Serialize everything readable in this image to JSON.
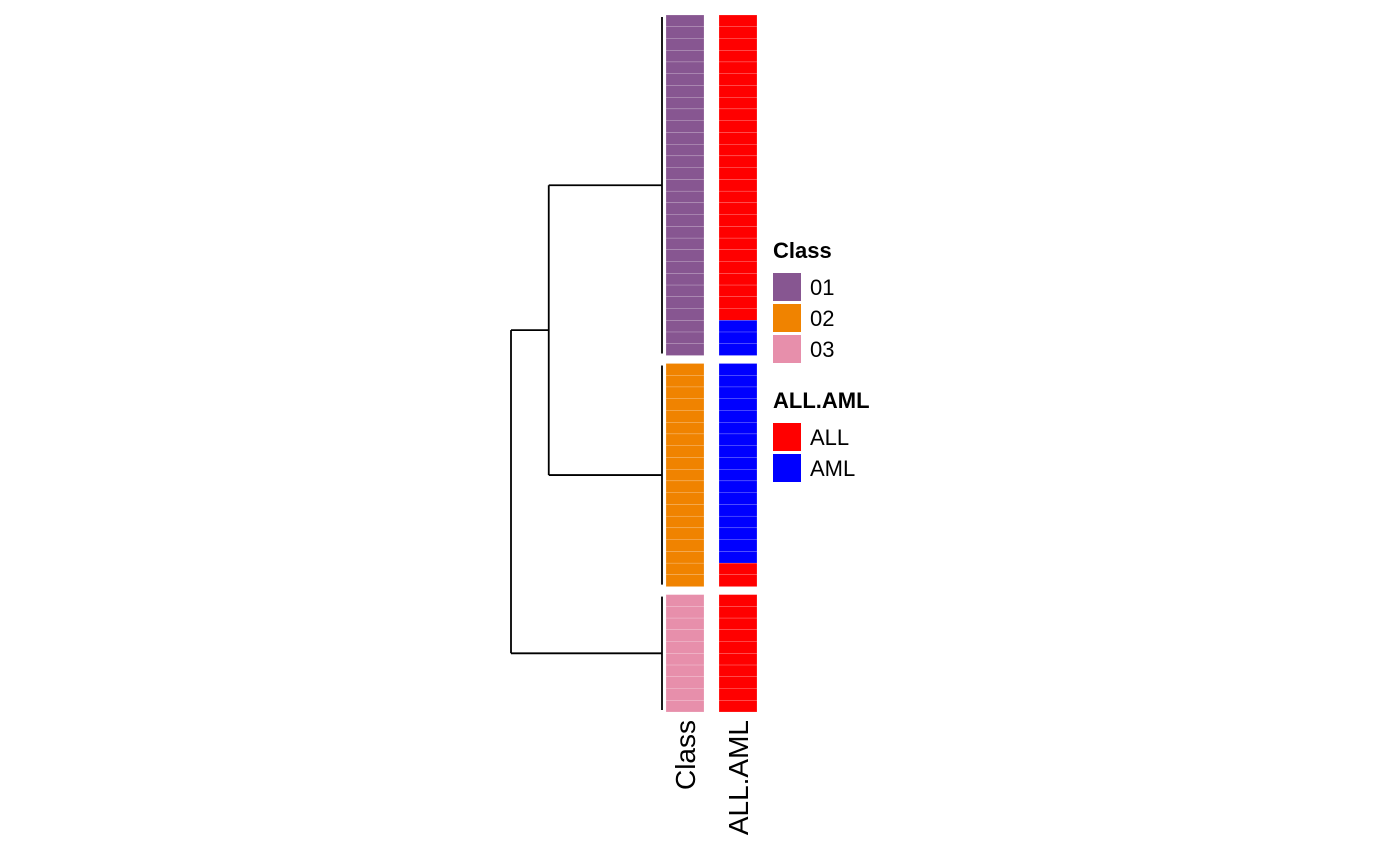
{
  "chart_data": {
    "type": "heatmap",
    "title": "",
    "columns": [
      "Class",
      "ALL.AML"
    ],
    "groups": [
      {
        "class": "01",
        "counts": {
          "ALL": 26,
          "AML": 3
        }
      },
      {
        "class": "02",
        "counts": {
          "AML": 17,
          "ALL": 2
        }
      },
      {
        "class": "03",
        "counts": {
          "ALL": 10
        }
      }
    ],
    "dendrogram": {
      "leaves": [
        "01",
        "02",
        "03"
      ],
      "merges": [
        {
          "left": "01",
          "right": "02",
          "height": 0.75
        },
        {
          "left": "01+02",
          "right": "03",
          "height": 1.0
        }
      ]
    },
    "legends": [
      {
        "title": "Class",
        "entries": [
          {
            "label": "01",
            "color": "#875691"
          },
          {
            "label": "02",
            "color": "#F08300"
          },
          {
            "label": "03",
            "color": "#E78FAB"
          }
        ]
      },
      {
        "title": "ALL.AML",
        "entries": [
          {
            "label": "ALL",
            "color": "#FF0000"
          },
          {
            "label": "AML",
            "color": "#0000FF"
          }
        ]
      }
    ],
    "legend_placement": "right",
    "grid": false
  }
}
